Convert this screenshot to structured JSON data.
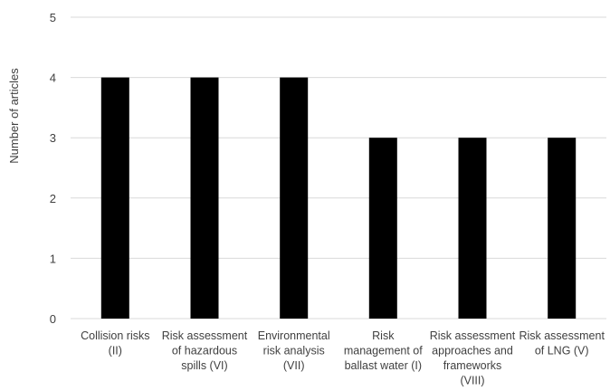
{
  "chart_data": {
    "type": "bar",
    "title": "",
    "xlabel": "",
    "ylabel": "Number of articles",
    "ylim": [
      0,
      5
    ],
    "yticks": [
      0,
      1,
      2,
      3,
      4,
      5
    ],
    "grid": true,
    "categories": [
      [
        "Collision risks",
        "(II)"
      ],
      [
        "Risk assessment",
        "of hazardous",
        "spills (VI)"
      ],
      [
        "Environmental",
        "risk analysis",
        "(VII)"
      ],
      [
        "Risk",
        "management of",
        "ballast water (I)"
      ],
      [
        "Risk assessment",
        "approaches and",
        "frameworks",
        "(VIII)"
      ],
      [
        "Risk assessment",
        "of LNG (V)"
      ]
    ],
    "values": [
      4,
      4,
      4,
      3,
      3,
      3
    ],
    "bar_color": "#000000",
    "grid_color": "#d9d9d9"
  }
}
